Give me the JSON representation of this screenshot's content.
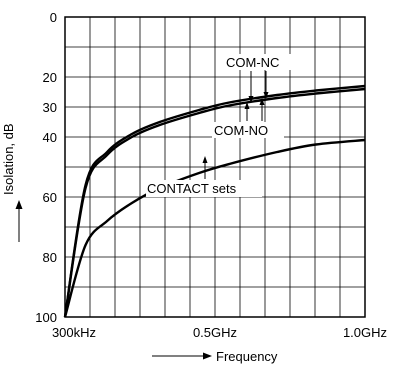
{
  "chart_data": {
    "type": "line",
    "xlabel": "Frequency",
    "ylabel": "Isolation, dB",
    "x_tick_labels": [
      "300kHz",
      "0.5GHz",
      "1.0GHz"
    ],
    "y_ticks": [
      0,
      20,
      30,
      40,
      60,
      80,
      100
    ],
    "ylim": [
      0,
      100
    ],
    "y_reversed": true,
    "grid": true,
    "series": [
      {
        "name": "COM-NC",
        "x": [
          0.0003,
          0.005,
          0.02,
          0.05,
          0.1,
          0.2,
          0.3,
          0.5,
          0.7,
          1.0
        ],
        "values": [
          100,
          56,
          45,
          39,
          35,
          31,
          28.5,
          26,
          24.5,
          23
        ]
      },
      {
        "name": "COM-NO",
        "x": [
          0.0003,
          0.005,
          0.02,
          0.05,
          0.1,
          0.2,
          0.3,
          0.5,
          0.7,
          1.0
        ],
        "values": [
          100,
          57,
          46,
          40,
          36,
          32,
          29.5,
          27,
          25.5,
          24
        ]
      },
      {
        "name": "CONTACT sets",
        "x": [
          0.0003,
          0.005,
          0.02,
          0.05,
          0.1,
          0.2,
          0.3,
          0.5,
          0.7,
          1.0
        ],
        "values": [
          100,
          76,
          68,
          62,
          57,
          52,
          49,
          45,
          42.5,
          41
        ]
      }
    ],
    "annotations": [
      "COM-NC",
      "COM-NO",
      "CONTACT sets"
    ]
  }
}
